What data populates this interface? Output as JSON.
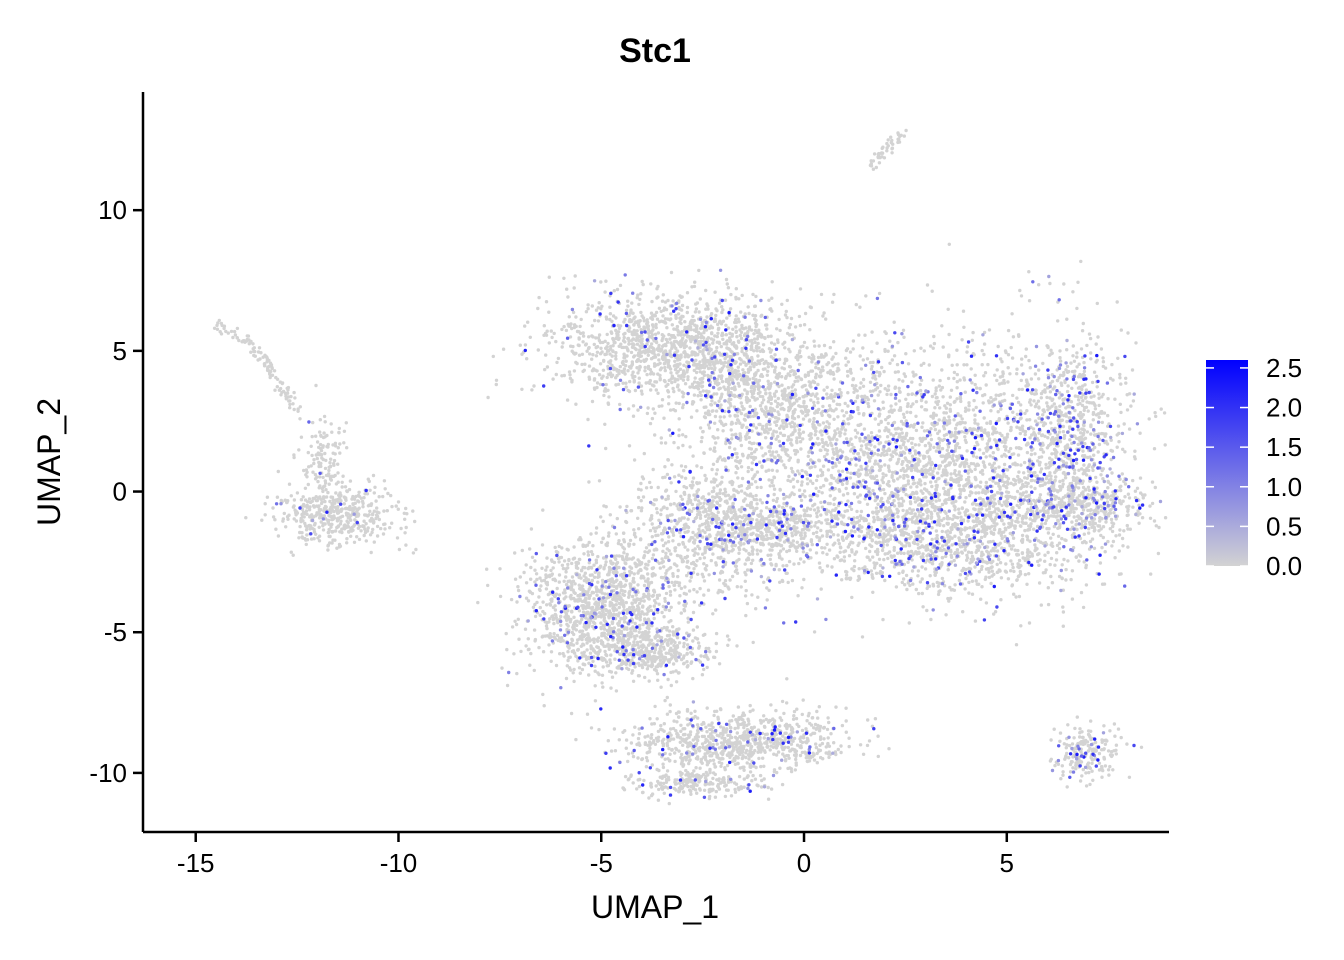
{
  "chart_data": {
    "type": "scatter",
    "title": "Stc1",
    "xlabel": "UMAP_1",
    "ylabel": "UMAP_2",
    "xlim": [
      -16.3,
      9.0
    ],
    "ylim": [
      -12.1,
      14.2
    ],
    "x_ticks": [
      -15,
      -10,
      -5,
      0,
      5
    ],
    "x_tick_labels": [
      "-15",
      "-10",
      "-5",
      "0",
      "5"
    ],
    "y_ticks": [
      -10,
      -5,
      0,
      5,
      10
    ],
    "y_tick_labels": [
      "-10",
      "-5",
      "0",
      "5",
      "10"
    ],
    "grid": false,
    "color_scale": {
      "low_color": "#d3d3d3",
      "high_color": "#0000ff",
      "min": 0,
      "max": 2.6,
      "ticks": [
        0.0,
        0.5,
        1.0,
        1.5,
        2.0,
        2.5
      ],
      "tick_labels": [
        "0.0",
        "0.5",
        "1.0",
        "1.5",
        "2.0",
        "2.5"
      ],
      "legend_position": "right"
    },
    "clusters": [
      {
        "cx": -13.4,
        "cy": 4.3,
        "sx": 0.25,
        "sy": 1.0,
        "n": 110,
        "express_frac": 0.0,
        "stroke": [
          [
            -14.5,
            6.0
          ],
          [
            -13.6,
            5.2
          ],
          [
            -13.0,
            4.0
          ],
          [
            -12.5,
            2.8
          ]
        ]
      },
      {
        "cx": -11.6,
        "cy": -0.8,
        "sx": 0.75,
        "sy": 0.55,
        "n": 460,
        "express_frac": 0.03
      },
      {
        "cx": -11.9,
        "cy": 1.2,
        "sx": 0.3,
        "sy": 0.8,
        "n": 120,
        "express_frac": 0.03
      },
      {
        "cx": 2.0,
        "cy": 12.1,
        "sx": 0.15,
        "sy": 0.3,
        "n": 45,
        "express_frac": 0.0,
        "stroke": [
          [
            1.6,
            11.5
          ],
          [
            2.0,
            12.1
          ],
          [
            2.4,
            12.7
          ]
        ]
      },
      {
        "cx": -3.2,
        "cy": 5.1,
        "sx": 1.6,
        "sy": 1.0,
        "n": 1400,
        "express_frac": 0.05
      },
      {
        "cx": -1.0,
        "cy": 3.2,
        "sx": 1.0,
        "sy": 1.0,
        "n": 500,
        "express_frac": 0.05
      },
      {
        "cx": 2.6,
        "cy": 1.2,
        "sx": 2.5,
        "sy": 2.0,
        "n": 2700,
        "express_frac": 0.1
      },
      {
        "cx": 3.6,
        "cy": -1.7,
        "sx": 1.8,
        "sy": 1.0,
        "n": 1000,
        "express_frac": 0.1
      },
      {
        "cx": 6.5,
        "cy": 2.0,
        "sx": 0.7,
        "sy": 2.0,
        "n": 700,
        "express_frac": 0.22
      },
      {
        "cx": 6.9,
        "cy": -0.5,
        "sx": 0.8,
        "sy": 0.5,
        "n": 300,
        "express_frac": 0.12
      },
      {
        "cx": -2.4,
        "cy": -1.3,
        "sx": 1.0,
        "sy": 1.2,
        "n": 700,
        "express_frac": 0.12
      },
      {
        "cx": -0.8,
        "cy": -1.3,
        "sx": 0.7,
        "sy": 0.5,
        "n": 300,
        "express_frac": 0.1
      },
      {
        "cx": -5.0,
        "cy": -4.0,
        "sx": 1.0,
        "sy": 1.2,
        "n": 1200,
        "express_frac": 0.06
      },
      {
        "cx": -3.8,
        "cy": -5.6,
        "sx": 0.8,
        "sy": 0.5,
        "n": 400,
        "express_frac": 0.06
      },
      {
        "cx": -2.5,
        "cy": -9.0,
        "sx": 1.0,
        "sy": 0.6,
        "n": 500,
        "express_frac": 0.07
      },
      {
        "cx": -0.6,
        "cy": -8.8,
        "sx": 0.9,
        "sy": 0.55,
        "n": 400,
        "express_frac": 0.08
      },
      {
        "cx": -2.6,
        "cy": -10.4,
        "sx": 0.8,
        "sy": 0.25,
        "n": 200,
        "express_frac": 0.05
      },
      {
        "cx": 7.0,
        "cy": -9.3,
        "sx": 0.4,
        "sy": 0.45,
        "n": 200,
        "express_frac": 0.12
      }
    ]
  }
}
